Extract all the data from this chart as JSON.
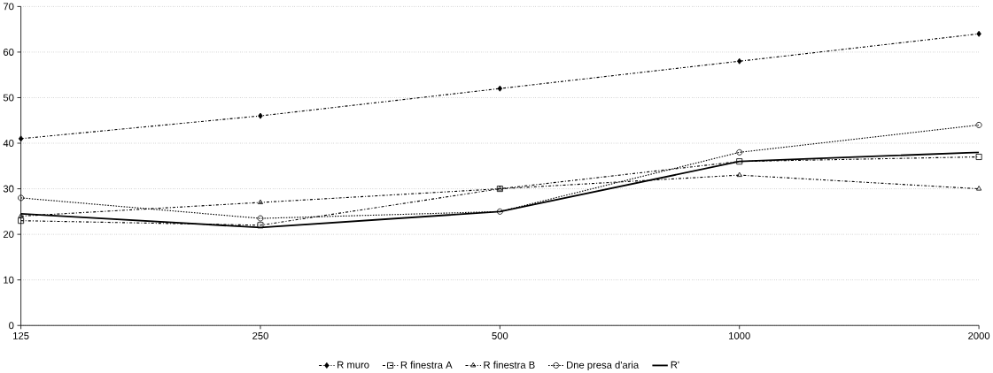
{
  "chart_data": {
    "type": "line",
    "categories": [
      "125",
      "250",
      "500",
      "1000",
      "2000"
    ],
    "series": [
      {
        "name": "R muro",
        "color": "#000000",
        "marker": "diamond",
        "line_style": "dashed",
        "values": [
          41,
          46,
          52,
          58,
          64
        ]
      },
      {
        "name": "R finestra A",
        "color": "#000000",
        "marker": "square",
        "line_style": "dashed",
        "values": [
          23,
          22,
          30,
          36,
          37
        ]
      },
      {
        "name": "R finestra B",
        "color": "#000000",
        "marker": "triangle",
        "line_style": "dashed",
        "values": [
          24,
          27,
          30,
          33,
          30
        ]
      },
      {
        "name": "Dne presa d'aria",
        "color": "#000000",
        "marker": "circle",
        "line_style": "dotted",
        "values": [
          28,
          23.5,
          25,
          38,
          44
        ]
      },
      {
        "name": "R'",
        "color": "#000000",
        "marker": "none",
        "line_style": "solid",
        "values": [
          24.5,
          21.5,
          25,
          36,
          38
        ]
      }
    ],
    "ylim": [
      0,
      70
    ],
    "yticks": [
      0,
      10,
      20,
      30,
      40,
      50,
      60,
      70
    ],
    "grid": "y",
    "legend": "bottom"
  }
}
